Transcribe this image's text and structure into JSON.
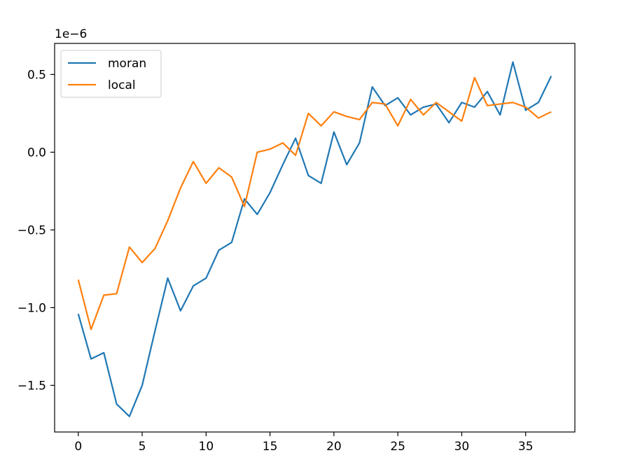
{
  "chart_data": {
    "type": "line",
    "title": "",
    "xlabel": "",
    "ylabel": "",
    "y_offset_label": "1e−6",
    "xlim": [
      -1.85,
      38.85
    ],
    "ylim": [
      -1.8e-06,
      7e-07
    ],
    "x_ticks": [
      0,
      5,
      10,
      15,
      20,
      25,
      30,
      35
    ],
    "x_tick_labels": [
      "0",
      "5",
      "10",
      "15",
      "20",
      "25",
      "30",
      "35"
    ],
    "y_ticks": [
      -1.5e-06,
      -1e-06,
      -5e-07,
      0,
      5e-07
    ],
    "y_tick_labels": [
      "−1.5",
      "−1.0",
      "−0.5",
      "0.0",
      "0.5"
    ],
    "grid": false,
    "legend_position": "upper-left",
    "x": [
      0,
      1,
      2,
      3,
      4,
      5,
      6,
      7,
      8,
      9,
      10,
      11,
      12,
      13,
      14,
      15,
      16,
      17,
      18,
      19,
      20,
      21,
      22,
      23,
      24,
      25,
      26,
      27,
      28,
      29,
      30,
      31,
      32,
      33,
      34,
      35,
      36,
      37
    ],
    "series": [
      {
        "name": "moran",
        "color": "#1f77b4",
        "values": [
          -1.04e-06,
          -1.33e-06,
          -1.29e-06,
          -1.62e-06,
          -1.7e-06,
          -1.5e-06,
          -1.15e-06,
          -8.1e-07,
          -1.02e-06,
          -8.6e-07,
          -8.1e-07,
          -6.3e-07,
          -5.8e-07,
          -3e-07,
          -4e-07,
          -2.6e-07,
          -8e-08,
          9e-08,
          -1.5e-07,
          -2e-07,
          1.3e-07,
          -8e-08,
          6e-08,
          4.2e-07,
          3e-07,
          3.5e-07,
          2.4e-07,
          2.9e-07,
          3.1e-07,
          1.9e-07,
          3.2e-07,
          2.9e-07,
          3.9e-07,
          2.4e-07,
          5.8e-07,
          2.7e-07,
          3.2e-07,
          4.9e-07
        ]
      },
      {
        "name": "local",
        "color": "#ff7f0e",
        "values": [
          -8.2e-07,
          -1.14e-06,
          -9.2e-07,
          -9.1e-07,
          -6.1e-07,
          -7.1e-07,
          -6.2e-07,
          -4.4e-07,
          -2.3e-07,
          -6e-08,
          -2e-07,
          -1e-07,
          -1.6e-07,
          -3.5e-07,
          0.0,
          2e-08,
          6e-08,
          -2e-08,
          2.5e-07,
          1.7e-07,
          2.6e-07,
          2.3e-07,
          2.1e-07,
          3.2e-07,
          3.1e-07,
          1.7e-07,
          3.4e-07,
          2.4e-07,
          3.2e-07,
          2.6e-07,
          2e-07,
          4.8e-07,
          3e-07,
          3.1e-07,
          3.2e-07,
          2.9e-07,
          2.2e-07,
          2.6e-07
        ]
      }
    ]
  }
}
